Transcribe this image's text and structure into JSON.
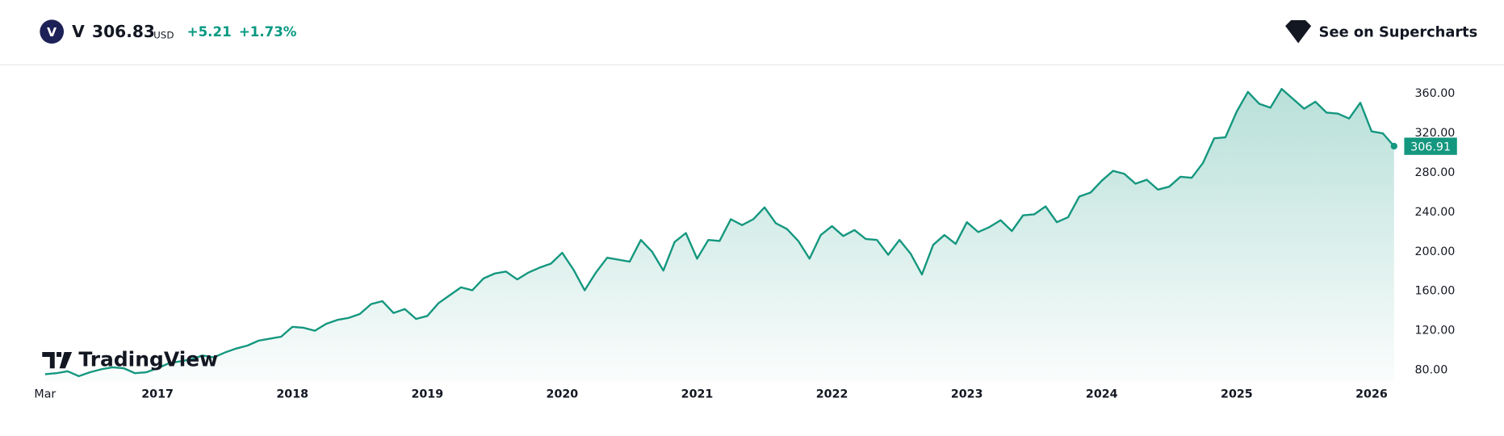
{
  "header": {
    "symbol": "V",
    "price": "306.83",
    "currency": "USD",
    "change": "+5.21",
    "change_percent": "+1.73%",
    "supercharts_link": "See on Supercharts",
    "watermark": "TradingView"
  },
  "chart_data": {
    "type": "area",
    "categories": [
      "Mar",
      null,
      null,
      null,
      null,
      null,
      null,
      null,
      null,
      null,
      "2017",
      null,
      null,
      null,
      null,
      null,
      null,
      null,
      null,
      null,
      null,
      null,
      "2018",
      null,
      null,
      null,
      null,
      null,
      null,
      null,
      null,
      null,
      null,
      null,
      "2019",
      null,
      null,
      null,
      null,
      null,
      null,
      null,
      null,
      null,
      null,
      null,
      "2020",
      null,
      null,
      null,
      null,
      null,
      null,
      null,
      null,
      null,
      null,
      null,
      "2021",
      null,
      null,
      null,
      null,
      null,
      null,
      null,
      null,
      null,
      null,
      null,
      "2022",
      null,
      null,
      null,
      null,
      null,
      null,
      null,
      null,
      null,
      null,
      null,
      "2023",
      null,
      null,
      null,
      null,
      null,
      null,
      null,
      null,
      null,
      null,
      null,
      "2024",
      null,
      null,
      null,
      null,
      null,
      null,
      null,
      null,
      null,
      null,
      null,
      "2025",
      null,
      null,
      null,
      null,
      null,
      null,
      null,
      null,
      null,
      null,
      null,
      "2026",
      null,
      null
    ],
    "series": [
      {
        "color": "#14977f",
        "values": [
          76,
          77,
          79,
          74,
          78,
          81,
          83,
          82,
          77,
          78,
          82,
          87,
          89,
          91,
          95,
          93,
          98,
          102,
          105,
          110,
          112,
          114,
          124,
          123,
          120,
          127,
          131,
          133,
          137,
          147,
          150,
          138,
          142,
          132,
          135,
          148,
          156,
          164,
          161,
          173,
          178,
          180,
          172,
          179,
          184,
          188,
          199,
          182,
          161,
          179,
          194,
          192,
          190,
          212,
          200,
          181,
          210,
          219,
          193,
          212,
          211,
          233,
          227,
          233,
          245,
          229,
          223,
          211,
          193,
          217,
          226,
          216,
          222,
          213,
          212,
          197,
          212,
          198,
          177,
          207,
          217,
          208,
          230,
          220,
          225,
          232,
          221,
          237,
          238,
          246,
          230,
          235,
          256,
          260,
          272,
          282,
          279,
          269,
          273,
          263,
          266,
          276,
          275,
          290,
          315,
          316,
          342,
          362,
          350,
          346,
          365,
          355,
          345,
          352,
          341,
          340,
          335,
          351,
          322,
          320,
          307
        ]
      }
    ],
    "ylim": [
      68.3,
      389
    ],
    "yticks": [
      {
        "value": 80,
        "label": "80.00"
      },
      {
        "value": 120,
        "label": "120.00"
      },
      {
        "value": 160,
        "label": "160.00"
      },
      {
        "value": 200,
        "label": "200.00"
      },
      {
        "value": 240,
        "label": "240.00"
      },
      {
        "value": 280,
        "label": "280.00"
      },
      {
        "value": 320,
        "label": "320.00"
      },
      {
        "value": 360,
        "label": "360.00"
      }
    ],
    "last_price": {
      "value": 306.91,
      "label": "306.91"
    },
    "grid": false
  }
}
